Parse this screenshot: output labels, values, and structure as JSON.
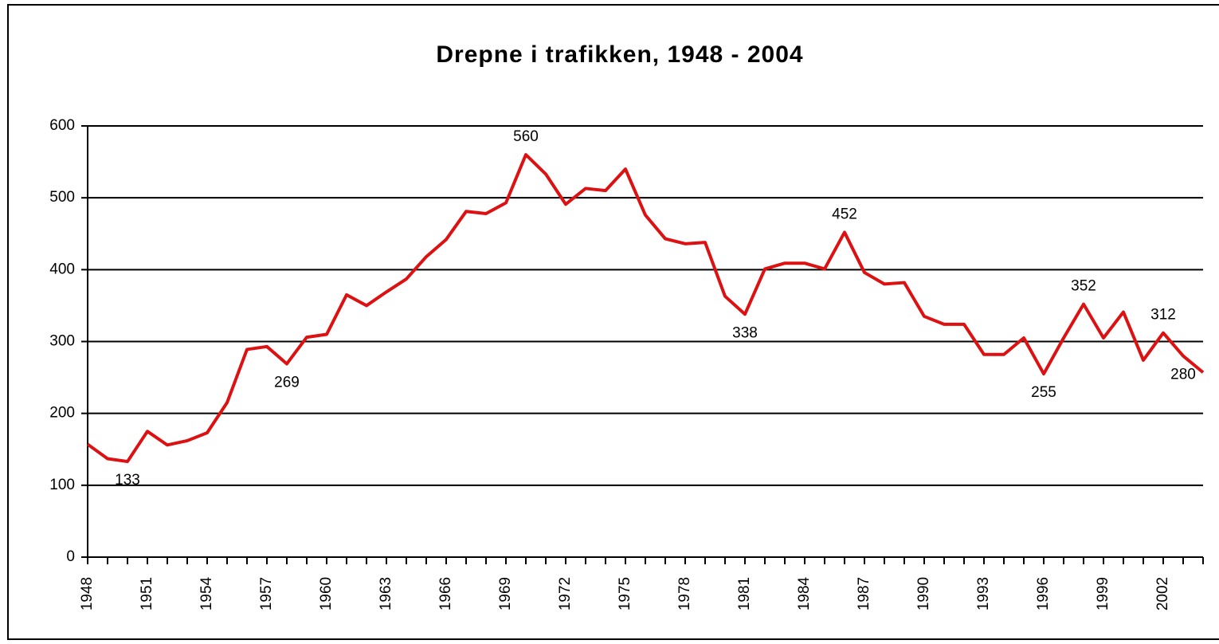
{
  "chart_data": {
    "type": "line",
    "title": "Drepne i trafikken, 1948 - 2004",
    "x": [
      1948,
      1949,
      1950,
      1951,
      1952,
      1953,
      1954,
      1955,
      1956,
      1957,
      1958,
      1959,
      1960,
      1961,
      1962,
      1963,
      1964,
      1965,
      1966,
      1967,
      1968,
      1969,
      1970,
      1971,
      1972,
      1973,
      1974,
      1975,
      1976,
      1977,
      1978,
      1979,
      1980,
      1981,
      1982,
      1983,
      1984,
      1985,
      1986,
      1987,
      1988,
      1989,
      1990,
      1991,
      1992,
      1993,
      1994,
      1995,
      1996,
      1997,
      1998,
      1999,
      2000,
      2001,
      2002,
      2003,
      2004
    ],
    "series": [
      {
        "color": "#dd1111",
        "values": [
          157,
          137,
          133,
          175,
          156,
          162,
          173,
          215,
          289,
          293,
          269,
          306,
          310,
          365,
          350,
          369,
          387,
          418,
          442,
          481,
          478,
          493,
          560,
          533,
          491,
          513,
          510,
          540,
          476,
          443,
          436,
          438,
          363,
          338,
          401,
          409,
          409,
          401,
          452,
          396,
          380,
          382,
          335,
          324,
          324,
          282,
          282,
          305,
          255,
          305,
          352,
          305,
          341,
          274,
          312,
          280,
          257
        ],
        "value_labels": [
          null,
          null,
          "133",
          null,
          null,
          null,
          null,
          null,
          null,
          null,
          "269",
          null,
          null,
          null,
          null,
          null,
          null,
          null,
          null,
          null,
          null,
          null,
          "560",
          null,
          null,
          null,
          null,
          null,
          null,
          null,
          null,
          null,
          null,
          "338",
          null,
          null,
          null,
          null,
          "452",
          null,
          null,
          null,
          null,
          null,
          null,
          null,
          null,
          null,
          "255",
          null,
          "352",
          null,
          null,
          null,
          "312",
          "280",
          null
        ]
      }
    ],
    "xlim": [
      1948,
      2004
    ],
    "xticks": [
      1948,
      1951,
      1954,
      1957,
      1960,
      1963,
      1966,
      1969,
      1972,
      1975,
      1978,
      1981,
      1984,
      1987,
      1990,
      1993,
      1996,
      1999,
      2002
    ],
    "ylim": [
      0,
      600
    ],
    "yticks": [
      0,
      100,
      200,
      300,
      400,
      500,
      600
    ],
    "grid": true
  }
}
